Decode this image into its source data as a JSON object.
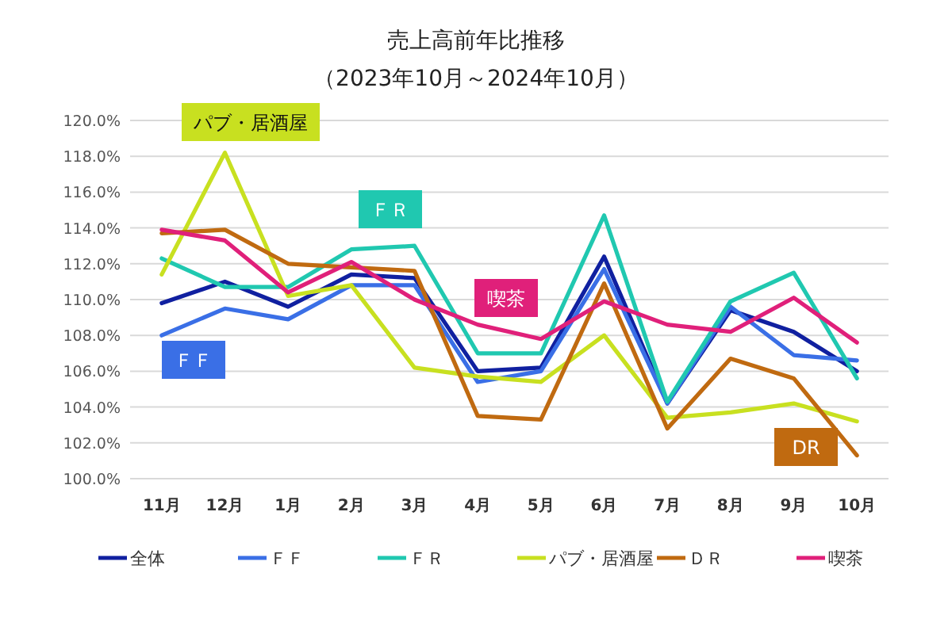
{
  "chart_data": {
    "type": "line",
    "title": "売上高前年比推移",
    "subtitle": "（2023年10月～2024年10月）",
    "categories": [
      "11月",
      "12月",
      "1月",
      "2月",
      "3月",
      "4月",
      "5月",
      "6月",
      "7月",
      "8月",
      "9月",
      "10月"
    ],
    "series": [
      {
        "name": "全体",
        "color": "#1020a0",
        "values": [
          109.8,
          111.0,
          109.6,
          111.4,
          111.2,
          106.0,
          106.2,
          112.4,
          104.2,
          109.4,
          108.2,
          106.0
        ]
      },
      {
        "name": "ＦＦ",
        "color": "#3a6fe6",
        "values": [
          108.0,
          109.5,
          108.9,
          110.8,
          110.8,
          105.4,
          106.0,
          111.7,
          104.2,
          109.6,
          106.9,
          106.6
        ]
      },
      {
        "name": "ＦＲ",
        "color": "#20c8b0",
        "values": [
          112.3,
          110.7,
          110.7,
          112.8,
          113.0,
          107.0,
          107.0,
          114.7,
          104.3,
          109.9,
          111.5,
          105.6
        ]
      },
      {
        "name": "パブ・居酒屋",
        "color": "#c8e020",
        "values": [
          111.4,
          118.2,
          110.2,
          110.8,
          106.2,
          105.7,
          105.4,
          108.0,
          103.4,
          103.7,
          104.2,
          103.2
        ]
      },
      {
        "name": "ＤＲ",
        "color": "#c06a10",
        "values": [
          113.7,
          113.9,
          112.0,
          111.8,
          111.6,
          103.5,
          103.3,
          110.9,
          102.8,
          106.7,
          105.6,
          101.3
        ]
      },
      {
        "name": "喫茶",
        "color": "#e0207a",
        "values": [
          113.9,
          113.3,
          110.4,
          112.1,
          110.0,
          108.6,
          107.8,
          109.9,
          108.6,
          108.2,
          110.1,
          107.6
        ]
      }
    ],
    "annotations": [
      "パブ・居酒屋",
      "ＦＲ",
      "ＦＦ",
      "喫茶",
      "DR"
    ],
    "ylim": [
      100,
      120
    ],
    "yticks": [
      {
        "value": 100,
        "label": "100.0%"
      },
      {
        "value": 102,
        "label": "102.0%"
      },
      {
        "value": 104,
        "label": "104.0%"
      },
      {
        "value": 106,
        "label": "106.0%"
      },
      {
        "value": 108,
        "label": "108.0%"
      },
      {
        "value": 110,
        "label": "110.0%"
      },
      {
        "value": 112,
        "label": "112.0%"
      },
      {
        "value": 114,
        "label": "114.0%"
      },
      {
        "value": 116,
        "label": "116.0%"
      },
      {
        "value": 118,
        "label": "118.0%"
      },
      {
        "value": 120,
        "label": "120.0%"
      }
    ],
    "grid": "y",
    "legend": "bottom",
    "marker": "none",
    "line_style": "solid"
  }
}
